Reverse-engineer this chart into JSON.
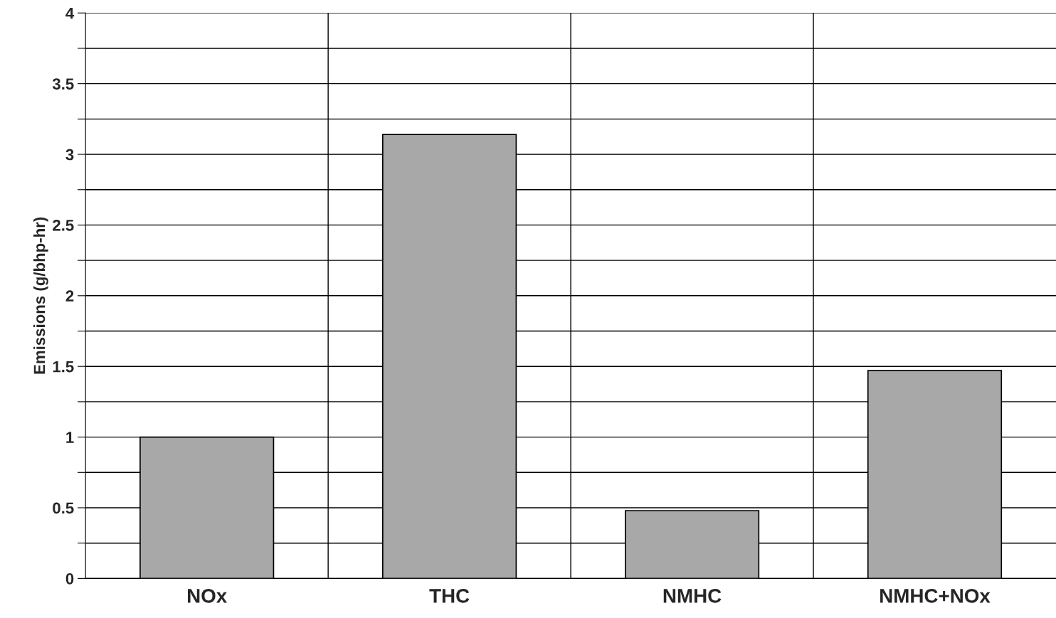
{
  "chart_data": {
    "type": "bar",
    "ylabel": "Emissions (g/bhp-hr)",
    "categories": [
      "NOx",
      "THC",
      "NMHC",
      "NMHC+NOx"
    ],
    "values": [
      1.0,
      3.14,
      0.48,
      1.47
    ],
    "color": "#a8a8a8",
    "ylim": [
      0,
      4
    ],
    "yticks": [
      0,
      {
        "value": 0.25,
        "label": null
      },
      0.5,
      {
        "value": 0.75,
        "label": null
      },
      1,
      {
        "value": 1.25,
        "label": null
      },
      1.5,
      {
        "value": 1.75,
        "label": null
      },
      2,
      {
        "value": 2.25,
        "label": null
      },
      2.5,
      {
        "value": 2.75,
        "label": null
      },
      3,
      {
        "value": 3.25,
        "label": null
      },
      3.5,
      {
        "value": 3.75,
        "label": null
      },
      4
    ],
    "grid": true
  }
}
